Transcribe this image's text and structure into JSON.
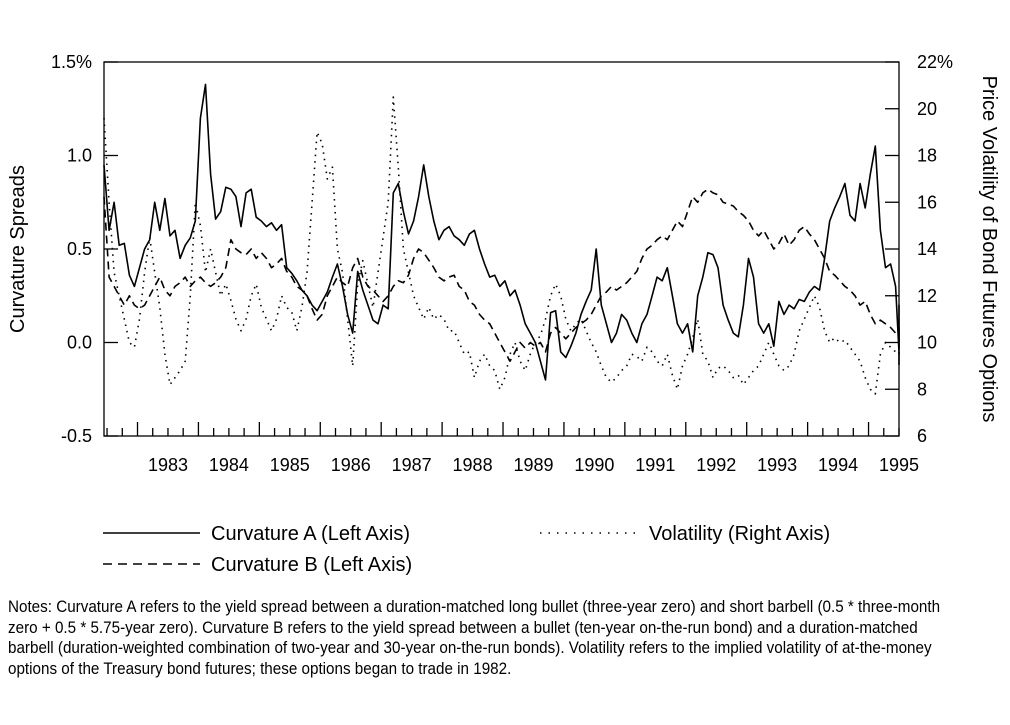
{
  "chart_data": {
    "type": "line",
    "title": "",
    "ylabel_left": "Curvature Spreads",
    "ylabel_right": "Price Volatility of Bond Futures Options",
    "ylim_left": [
      -0.5,
      1.5
    ],
    "ylim_right": [
      6,
      22
    ],
    "left_ticks": [
      "-0.5",
      "0.0",
      "0.5",
      "1.0",
      "1.5%"
    ],
    "right_ticks": [
      "6",
      "8",
      "10",
      "12",
      "14",
      "16",
      "18",
      "20",
      "22%"
    ],
    "xlim": [
      1982.45,
      1995.5
    ],
    "years": [
      "1983",
      "1984",
      "1985",
      "1986",
      "1987",
      "1988",
      "1989",
      "1990",
      "1991",
      "1992",
      "1993",
      "1994",
      "1995"
    ],
    "grid": false,
    "legend_position": "bottom",
    "series": [
      {
        "name": "Curvature A (Left Axis)",
        "axis": "left",
        "style": "solid",
        "x0": 1982.45,
        "step": 0.0833,
        "values": [
          0.95,
          0.6,
          0.75,
          0.52,
          0.53,
          0.36,
          0.3,
          0.4,
          0.5,
          0.55,
          0.75,
          0.6,
          0.77,
          0.57,
          0.6,
          0.45,
          0.52,
          0.56,
          0.65,
          1.2,
          1.38,
          0.9,
          0.66,
          0.7,
          0.83,
          0.82,
          0.78,
          0.62,
          0.8,
          0.82,
          0.67,
          0.65,
          0.62,
          0.64,
          0.6,
          0.63,
          0.4,
          0.37,
          0.33,
          0.28,
          0.25,
          0.2,
          0.17,
          0.22,
          0.27,
          0.35,
          0.42,
          0.3,
          0.15,
          0.05,
          0.38,
          0.28,
          0.2,
          0.12,
          0.1,
          0.2,
          0.18,
          0.8,
          0.85,
          0.7,
          0.58,
          0.65,
          0.78,
          0.95,
          0.78,
          0.65,
          0.55,
          0.6,
          0.62,
          0.57,
          0.55,
          0.52,
          0.58,
          0.6,
          0.5,
          0.42,
          0.35,
          0.36,
          0.3,
          0.33,
          0.25,
          0.28,
          0.2,
          0.1,
          0.05,
          0.0,
          -0.1,
          -0.2,
          0.16,
          0.17,
          -0.05,
          -0.08,
          -0.02,
          0.05,
          0.15,
          0.22,
          0.28,
          0.5,
          0.2,
          0.1,
          0.0,
          0.05,
          0.15,
          0.12,
          0.05,
          0.0,
          0.1,
          0.15,
          0.25,
          0.35,
          0.33,
          0.4,
          0.25,
          0.1,
          0.05,
          0.1,
          -0.05,
          0.25,
          0.35,
          0.48,
          0.47,
          0.4,
          0.2,
          0.12,
          0.05,
          0.03,
          0.2,
          0.45,
          0.35,
          0.1,
          0.05,
          0.1,
          -0.02,
          0.22,
          0.15,
          0.2,
          0.18,
          0.23,
          0.22,
          0.27,
          0.3,
          0.28,
          0.45,
          0.65,
          0.72,
          0.78,
          0.85,
          0.68,
          0.65,
          0.85,
          0.72,
          0.9,
          1.05,
          0.6,
          0.4,
          0.42,
          0.3,
          -0.05,
          0.08,
          0.1,
          0.15,
          0.2,
          0.05,
          -0.12
        ]
      },
      {
        "name": "Curvature B (Left Axis)",
        "axis": "left",
        "style": "dashed",
        "x0": 1982.45,
        "step": 0.0833,
        "values": [
          0.78,
          0.35,
          0.3,
          0.25,
          0.2,
          0.25,
          0.2,
          0.18,
          0.2,
          0.25,
          0.3,
          0.35,
          0.28,
          0.25,
          0.3,
          0.32,
          0.35,
          0.3,
          0.33,
          0.35,
          0.32,
          0.3,
          0.32,
          0.35,
          0.4,
          0.55,
          0.5,
          0.48,
          0.47,
          0.5,
          0.45,
          0.48,
          0.45,
          0.4,
          0.42,
          0.45,
          0.38,
          0.35,
          0.3,
          0.28,
          0.25,
          0.18,
          0.12,
          0.15,
          0.25,
          0.3,
          0.35,
          0.32,
          0.3,
          0.4,
          0.45,
          0.35,
          0.3,
          0.28,
          0.25,
          0.22,
          0.25,
          0.3,
          0.33,
          0.32,
          0.36,
          0.45,
          0.5,
          0.48,
          0.44,
          0.4,
          0.35,
          0.33,
          0.35,
          0.36,
          0.3,
          0.28,
          0.22,
          0.2,
          0.15,
          0.12,
          0.1,
          0.05,
          0.0,
          -0.05,
          -0.1,
          -0.05,
          0.0,
          -0.03,
          0.0,
          -0.02,
          0.0,
          -0.05,
          0.05,
          0.08,
          0.05,
          0.02,
          0.05,
          0.08,
          0.1,
          0.12,
          0.15,
          0.2,
          0.25,
          0.27,
          0.3,
          0.28,
          0.3,
          0.32,
          0.35,
          0.38,
          0.45,
          0.5,
          0.52,
          0.55,
          0.57,
          0.55,
          0.6,
          0.65,
          0.62,
          0.7,
          0.78,
          0.75,
          0.8,
          0.82,
          0.8,
          0.79,
          0.75,
          0.74,
          0.73,
          0.7,
          0.68,
          0.65,
          0.6,
          0.57,
          0.6,
          0.55,
          0.5,
          0.53,
          0.58,
          0.52,
          0.55,
          0.6,
          0.62,
          0.58,
          0.55,
          0.5,
          0.45,
          0.38,
          0.36,
          0.33,
          0.3,
          0.28,
          0.25,
          0.2,
          0.22,
          0.15,
          0.1,
          0.12,
          0.1,
          0.08,
          0.05,
          0.03,
          0.0,
          -0.02,
          0.0,
          0.05,
          0.08,
          0.05,
          -0.02
        ]
      },
      {
        "name": "Volatility (Right Axis)",
        "axis": "right",
        "style": "dotted",
        "x0": 1982.45,
        "step": 0.0833,
        "values": [
          19.6,
          16,
          13,
          12,
          11,
          10,
          9.8,
          11,
          13,
          14.5,
          13,
          11.5,
          9.5,
          8.2,
          8.5,
          8.8,
          9.2,
          12,
          16,
          15,
          13,
          14,
          13,
          12,
          12.5,
          11.8,
          11,
          10.5,
          11,
          12,
          12.5,
          11.5,
          11,
          10.5,
          11,
          12,
          11.5,
          11.3,
          10.5,
          11.5,
          13,
          16,
          19,
          18.5,
          17,
          17.5,
          14,
          13,
          11,
          9,
          12.5,
          13.5,
          12.5,
          11.5,
          13,
          14.5,
          16,
          20.5,
          17.5,
          14,
          13,
          12,
          11.5,
          11,
          11.5,
          11,
          11.2,
          11,
          10.5,
          10.5,
          10,
          9.5,
          9.6,
          8.5,
          9.2,
          9.5,
          9,
          8.8,
          8,
          8.5,
          9.5,
          10,
          9.2,
          8.8,
          9.5,
          10,
          10.3,
          11,
          12,
          12.5,
          12,
          11,
          10.5,
          10.8,
          11,
          10.5,
          10,
          9.6,
          9,
          8.5,
          8.3,
          8.5,
          8.8,
          9,
          9.5,
          9.4,
          9.2,
          9.8,
          9.6,
          9.2,
          9,
          9.5,
          8.6,
          8,
          9,
          9.5,
          10.2,
          11,
          9.5,
          9.2,
          8.5,
          8.9,
          9,
          8.8,
          8.5,
          8.6,
          8.2,
          8.5,
          8.8,
          9,
          9.5,
          10,
          9.5,
          9,
          8.8,
          9,
          9.5,
          10.5,
          11,
          11.5,
          12,
          11.5,
          10.5,
          10,
          10.2,
          10,
          10.1,
          9.8,
          9.5,
          9.2,
          8.5,
          8,
          7.8,
          9.5,
          10,
          9.8,
          9.6,
          9.5,
          10.5,
          9.5
        ]
      }
    ]
  },
  "legend": {
    "curvature_a": "Curvature A (Left Axis)",
    "curvature_b": "Curvature B (Left Axis)",
    "volatility": "Volatility (Right Axis)"
  },
  "notes": "Notes: Curvature A refers to the yield spread between a duration-matched long bullet (three-year zero) and short barbell (0.5 * three-month zero + 0.5 * 5.75-year zero). Curvature B refers to the yield spread between a bullet (ten-year on-the-run bond) and a duration-matched barbell (duration-weighted combination of two-year and 30-year on-the-run bonds). Volatility refers to the implied volatility of at-the-money options of the Treasury bond futures; these options began to trade in 1982."
}
